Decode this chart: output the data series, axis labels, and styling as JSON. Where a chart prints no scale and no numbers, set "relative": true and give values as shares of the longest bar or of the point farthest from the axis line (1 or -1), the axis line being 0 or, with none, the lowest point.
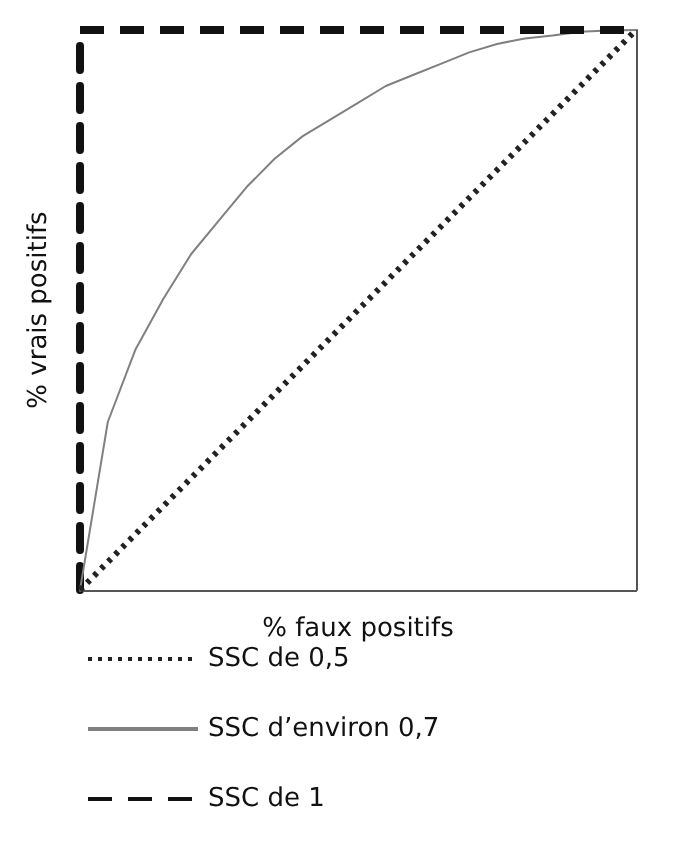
{
  "chart_data": {
    "type": "line",
    "relative": true,
    "xlabel": "% faux positifs",
    "ylabel": "% vrais positifs",
    "legend": "bottom",
    "marker": "none",
    "grid": false,
    "categories": [
      null,
      null,
      null,
      null,
      null,
      null,
      null,
      null,
      null,
      null,
      null,
      null,
      null,
      null,
      null,
      null,
      null,
      null,
      null,
      null,
      null
    ],
    "series": [
      {
        "name": "SSC de 0,5",
        "color": "#222222",
        "line_style": "dotted",
        "values": [
          0,
          0.05,
          0.1,
          0.15,
          0.2,
          0.25,
          0.3,
          0.35,
          0.4,
          0.45,
          0.5,
          0.55,
          0.6,
          0.65,
          0.7,
          0.75,
          0.8,
          0.85,
          0.9,
          0.95,
          1
        ]
      },
      {
        "name": "SSC d’environ 0,7",
        "color": "#808080",
        "line_style": "solid",
        "values": [
          0,
          0.3,
          0.43,
          0.52,
          0.6,
          0.66,
          0.72,
          0.77,
          0.81,
          0.84,
          0.87,
          0.9,
          0.92,
          0.94,
          0.96,
          0.975,
          0.985,
          0.99,
          0.997,
          0.999,
          1
        ]
      },
      {
        "name": "SSC de 1",
        "color": "#111111",
        "line_style": "dashed",
        "values": [
          1,
          1,
          1,
          1,
          1,
          1,
          1,
          1,
          1,
          1,
          1,
          1,
          1,
          1,
          1,
          1,
          1,
          1,
          1,
          1,
          1
        ]
      }
    ]
  }
}
